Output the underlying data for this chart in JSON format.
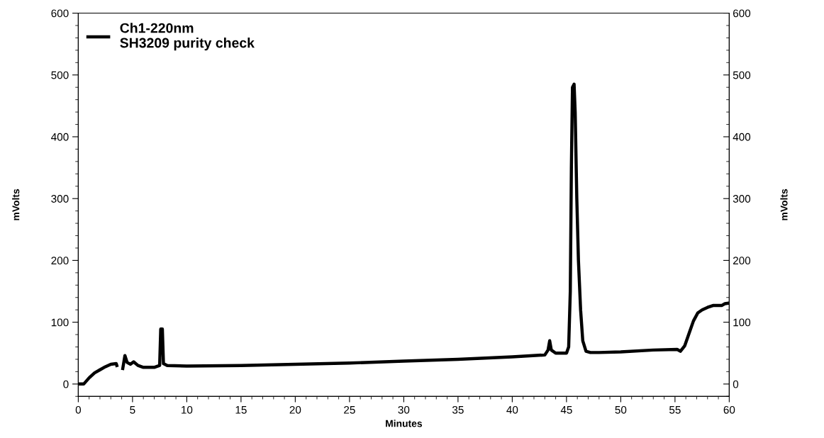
{
  "chart_data": {
    "type": "line",
    "xlabel": "Minutes",
    "ylabel": "mVolts",
    "y2label": "mVolts",
    "xlim": [
      0,
      60
    ],
    "xticks": [
      0,
      5,
      10,
      15,
      20,
      25,
      30,
      35,
      40,
      45,
      50,
      55,
      60
    ],
    "ylim": [
      -20,
      600
    ],
    "yticks": [
      0,
      100,
      200,
      300,
      400,
      500,
      600
    ],
    "y2lim": [
      -20,
      600
    ],
    "y2ticks": [
      0,
      100,
      200,
      300,
      400,
      500,
      600
    ],
    "grid": false,
    "legend": "top left",
    "marker": "none",
    "line_style": "solid",
    "series": [
      {
        "name": "Ch1-220nm\nSH3209 purity check",
        "color": "#000000",
        "x": [
          0.05,
          0.5,
          1,
          1.5,
          2,
          2.5,
          3,
          3.5,
          3.55,
          3.6,
          4.05,
          4.1,
          4.3,
          4.5,
          4.8,
          5.1,
          5.5,
          6,
          7,
          7.5,
          7.6,
          7.75,
          7.85,
          8.2,
          10,
          15,
          20,
          25,
          30,
          35,
          40,
          43,
          43.3,
          43.45,
          43.6,
          44,
          45,
          45.2,
          45.35,
          45.45,
          45.55,
          45.7,
          45.8,
          45.95,
          46.1,
          46.3,
          46.5,
          46.8,
          47.2,
          48,
          50,
          53,
          55.2,
          55.5,
          55.9,
          56.3,
          56.7,
          57.1,
          57.5,
          58,
          58.5,
          59.3,
          59.6,
          60
        ],
        "values": [
          0,
          0,
          10,
          18,
          23,
          28,
          32,
          33,
          30,
          null,
          null,
          25,
          46,
          35,
          32,
          36,
          30,
          27,
          27,
          30,
          89,
          89,
          33,
          30,
          29,
          30,
          32,
          34,
          37,
          40,
          44,
          47,
          55,
          70,
          55,
          50,
          50,
          60,
          150,
          350,
          480,
          485,
          440,
          300,
          200,
          120,
          70,
          53,
          51,
          51,
          52,
          55,
          56,
          53,
          62,
          82,
          102,
          115,
          120,
          124,
          127,
          127,
          130,
          131
        ]
      }
    ]
  }
}
